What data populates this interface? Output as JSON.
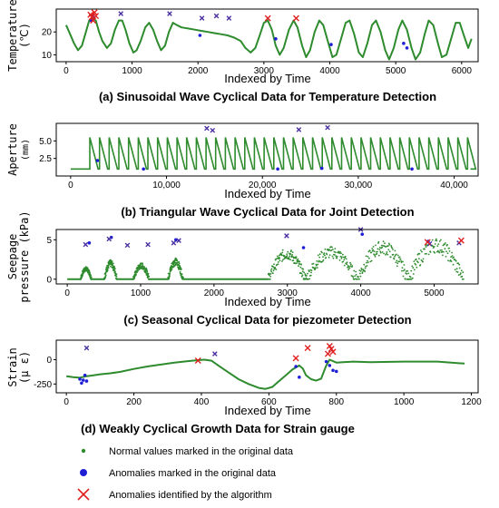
{
  "legend": [
    {
      "label": "Normal values marked in the original data",
      "color": "#2e8b2e",
      "marker": "small-dot"
    },
    {
      "label": "Anomalies marked in the original data",
      "color": "#1f1fd6",
      "marker": "large-dot"
    },
    {
      "label": "Anomalies identified by the algorithm",
      "color": "#e02020",
      "marker": "x"
    }
  ],
  "chart_data": [
    {
      "type": "line",
      "caption": "(a)  Sinusoidal Wave Cyclical Data for Temperature Detection",
      "xlabel": "Indexed by Time",
      "ylabel_lines": [
        "Temperature",
        "(℃)"
      ],
      "xlim": [
        -150,
        6250
      ],
      "ylim": [
        7,
        30
      ],
      "xticks": [
        0,
        1000,
        2000,
        3000,
        4000,
        5000,
        6000
      ],
      "xtick_labels": [
        "0",
        "1000",
        "2000",
        "3000",
        "4000",
        "5000",
        "6000"
      ],
      "yticks": [
        10,
        20
      ],
      "ytick_labels": [
        "10",
        "20"
      ],
      "series": [
        {
          "values": [
            [
              0,
              23
            ],
            [
              60,
              19
            ],
            [
              120,
              15
            ],
            [
              180,
              12
            ],
            [
              240,
              14
            ],
            [
              300,
              20
            ],
            [
              350,
              25
            ],
            [
              400,
              26
            ],
            [
              450,
              25
            ],
            [
              500,
              20
            ],
            [
              550,
              16
            ],
            [
              620,
              13
            ],
            [
              680,
              15
            ],
            [
              740,
              21
            ],
            [
              800,
              25
            ],
            [
              850,
              25
            ],
            [
              900,
              21
            ],
            [
              960,
              15
            ],
            [
              1020,
              11
            ],
            [
              1070,
              12
            ],
            [
              1130,
              16
            ],
            [
              1200,
              22
            ],
            [
              1260,
              24
            ],
            [
              1320,
              21
            ],
            [
              1380,
              16
            ],
            [
              1440,
              12
            ],
            [
              1500,
              14
            ],
            [
              1560,
              20
            ],
            [
              1620,
              24
            ],
            [
              1680,
              23
            ],
            [
              1750,
              22
            ],
            [
              1850,
              21.5
            ],
            [
              1950,
              21
            ],
            [
              2050,
              20.5
            ],
            [
              2150,
              20
            ],
            [
              2250,
              19.5
            ],
            [
              2350,
              19
            ],
            [
              2450,
              18.5
            ],
            [
              2550,
              17.5
            ],
            [
              2650,
              16
            ],
            [
              2720,
              13
            ],
            [
              2800,
              11
            ],
            [
              2870,
              13
            ],
            [
              2930,
              18
            ],
            [
              3000,
              24
            ],
            [
              3060,
              25
            ],
            [
              3120,
              21
            ],
            [
              3180,
              14
            ],
            [
              3240,
              10
            ],
            [
              3300,
              13
            ],
            [
              3380,
              21
            ],
            [
              3450,
              25
            ],
            [
              3510,
              22
            ],
            [
              3580,
              14
            ],
            [
              3640,
              9
            ],
            [
              3700,
              12
            ],
            [
              3770,
              20
            ],
            [
              3840,
              25
            ],
            [
              3900,
              23
            ],
            [
              3970,
              16
            ],
            [
              4040,
              9
            ],
            [
              4100,
              10
            ],
            [
              4170,
              17
            ],
            [
              4240,
              24
            ],
            [
              4300,
              25
            ],
            [
              4370,
              19
            ],
            [
              4440,
              11
            ],
            [
              4500,
              9
            ],
            [
              4570,
              15
            ],
            [
              4640,
              23
            ],
            [
              4700,
              25
            ],
            [
              4770,
              20
            ],
            [
              4840,
              12
            ],
            [
              4900,
              8
            ],
            [
              4970,
              13
            ],
            [
              5040,
              21
            ],
            [
              5100,
              25
            ],
            [
              5170,
              21
            ],
            [
              5240,
              13
            ],
            [
              5300,
              8
            ],
            [
              5370,
              11
            ],
            [
              5440,
              19
            ],
            [
              5500,
              25
            ],
            [
              5570,
              23
            ],
            [
              5640,
              15
            ],
            [
              5700,
              9
            ],
            [
              5770,
              10
            ],
            [
              5840,
              17
            ],
            [
              5910,
              24
            ],
            [
              5970,
              24
            ],
            [
              6040,
              18
            ],
            [
              6100,
              13
            ],
            [
              6150,
              17
            ]
          ]
        }
      ],
      "anomalies_original": [
        [
          380,
          25
        ],
        [
          400,
          27
        ],
        [
          420,
          26
        ],
        [
          2030,
          18.5
        ],
        [
          3180,
          17
        ],
        [
          4020,
          14.5
        ],
        [
          5120,
          15
        ],
        [
          5170,
          13
        ]
      ],
      "anomalies_algorithm": [
        [
          370,
          27.5
        ],
        [
          390,
          26.5
        ],
        [
          410,
          25
        ],
        [
          430,
          28.5
        ],
        [
          450,
          27
        ],
        [
          3060,
          26
        ],
        [
          3490,
          26
        ]
      ],
      "anomalies_unmatched": [
        [
          830,
          28
        ],
        [
          1570,
          28
        ],
        [
          2060,
          26
        ],
        [
          2280,
          27
        ],
        [
          2470,
          26
        ]
      ]
    },
    {
      "type": "line",
      "caption": "(b)  Triangular Wave Cyclical Data for Joint Detection",
      "xlabel": "Indexed by Time",
      "ylabel_lines": [
        "Aperture",
        "(mm)"
      ],
      "xlim": [
        -1500,
        42500
      ],
      "ylim": [
        0,
        7.5
      ],
      "xticks": [
        0,
        10000,
        20000,
        30000,
        40000
      ],
      "xtick_labels": [
        "0",
        "10,000",
        "20,000",
        "30,000",
        "40,000"
      ],
      "yticks": [
        2.5,
        5.0
      ],
      "ytick_labels": [
        "2.5",
        "5.0"
      ],
      "wave": {
        "start": 2000,
        "period": 1010,
        "count": 40,
        "low": 1,
        "high": 5.5
      },
      "anomalies_original": [
        [
          2800,
          2.2
        ],
        [
          7600,
          1.0
        ],
        [
          21600,
          1.0
        ],
        [
          26200,
          1.1
        ],
        [
          35600,
          1.0
        ]
      ],
      "anomalies_algorithm": [],
      "anomalies_unmatched": [
        [
          14200,
          6.8
        ],
        [
          14800,
          6.5
        ],
        [
          23800,
          6.6
        ],
        [
          26800,
          6.9
        ]
      ]
    },
    {
      "type": "scatter",
      "caption": "(c)  Seasonal Cyclical Data for piezometer Detection",
      "xlabel": "Indexed by Time",
      "ylabel_lines": [
        "Seepage",
        "pressure (kPa)"
      ],
      "xlim": [
        -150,
        5600
      ],
      "ylim": [
        -0.6,
        6.3
      ],
      "xticks": [
        0,
        1000,
        2000,
        3000,
        4000,
        5000
      ],
      "xtick_labels": [
        "0",
        "1000",
        "2000",
        "3000",
        "4000",
        "5000"
      ],
      "yticks": [
        0,
        5
      ],
      "ytick_labels": [
        "0",
        "5"
      ],
      "baseline_segments": [
        [
          0,
          180
        ],
        [
          330,
          500
        ],
        [
          680,
          900
        ],
        [
          1120,
          1370
        ],
        [
          1580,
          2740
        ]
      ],
      "bumps": [
        [
          180,
          330,
          1.3
        ],
        [
          500,
          680,
          2.0
        ],
        [
          900,
          1120,
          1.7
        ],
        [
          1370,
          1580,
          2.2
        ],
        [
          2740,
          3250,
          3.2
        ],
        [
          3250,
          3950,
          3.4
        ],
        [
          3950,
          4650,
          4.0
        ],
        [
          4650,
          5400,
          4.3
        ]
      ],
      "anomalies_original": [
        [
          300,
          4.6
        ],
        [
          600,
          5.3
        ],
        [
          1480,
          5.0
        ],
        [
          3220,
          4.0
        ],
        [
          4020,
          5.7
        ],
        [
          4920,
          4.8
        ]
      ],
      "anomalies_algorithm": [
        [
          4910,
          4.7
        ],
        [
          5370,
          4.9
        ]
      ],
      "anomalies_unmatched": [
        [
          250,
          4.4
        ],
        [
          570,
          5.1
        ],
        [
          820,
          4.3
        ],
        [
          1100,
          4.4
        ],
        [
          1450,
          4.6
        ],
        [
          1520,
          4.9
        ],
        [
          2990,
          5.5
        ],
        [
          4000,
          6.3
        ],
        [
          4940,
          4.5
        ],
        [
          5340,
          4.6
        ]
      ]
    },
    {
      "type": "line",
      "caption": "(d)  Weakly Cyclical Growth Data for Strain gauge",
      "xlabel": "Indexed by Time",
      "ylabel_lines": [
        "Strain",
        "(μ ε)"
      ],
      "xlim": [
        -30,
        1220
      ],
      "ylim": [
        -340,
        200
      ],
      "xticks": [
        0,
        200,
        400,
        600,
        800,
        1000,
        1200
      ],
      "xtick_labels": [
        "0",
        "200",
        "400",
        "600",
        "800",
        "1000",
        "1200"
      ],
      "yticks": [
        -250,
        0
      ],
      "ytick_labels": [
        "-250",
        "0"
      ],
      "series": [
        {
          "values": [
            [
              0,
              -170
            ],
            [
              20,
              -180
            ],
            [
              40,
              -185
            ],
            [
              60,
              -170
            ],
            [
              80,
              -160
            ],
            [
              100,
              -150
            ],
            [
              130,
              -140
            ],
            [
              160,
              -125
            ],
            [
              200,
              -95
            ],
            [
              240,
              -70
            ],
            [
              280,
              -50
            ],
            [
              320,
              -30
            ],
            [
              360,
              -15
            ],
            [
              390,
              -5
            ],
            [
              410,
              0
            ],
            [
              430,
              -10
            ],
            [
              450,
              -60
            ],
            [
              480,
              -130
            ],
            [
              510,
              -200
            ],
            [
              540,
              -250
            ],
            [
              570,
              -290
            ],
            [
              590,
              -300
            ],
            [
              610,
              -280
            ],
            [
              630,
              -220
            ],
            [
              650,
              -160
            ],
            [
              670,
              -100
            ],
            [
              690,
              -60
            ],
            [
              700,
              -90
            ],
            [
              710,
              -160
            ],
            [
              725,
              -200
            ],
            [
              740,
              -215
            ],
            [
              755,
              -195
            ],
            [
              770,
              -60
            ],
            [
              780,
              0
            ],
            [
              800,
              -30
            ],
            [
              850,
              -20
            ],
            [
              900,
              -25
            ],
            [
              1000,
              -20
            ],
            [
              1100,
              -20
            ],
            [
              1180,
              -40
            ]
          ]
        }
      ],
      "anomalies_original": [
        [
          40,
          -200
        ],
        [
          45,
          -240
        ],
        [
          50,
          -210
        ],
        [
          55,
          -160
        ],
        [
          60,
          -220
        ],
        [
          680,
          -70
        ],
        [
          690,
          -180
        ],
        [
          770,
          -20
        ],
        [
          780,
          -60
        ],
        [
          790,
          -110
        ],
        [
          800,
          -120
        ]
      ],
      "anomalies_algorithm": [
        [
          390,
          -10
        ],
        [
          680,
          15
        ],
        [
          715,
          120
        ],
        [
          775,
          60
        ],
        [
          780,
          140
        ],
        [
          785,
          110
        ],
        [
          790,
          80
        ]
      ],
      "anomalies_unmatched": [
        [
          60,
          120
        ],
        [
          440,
          60
        ]
      ]
    }
  ]
}
